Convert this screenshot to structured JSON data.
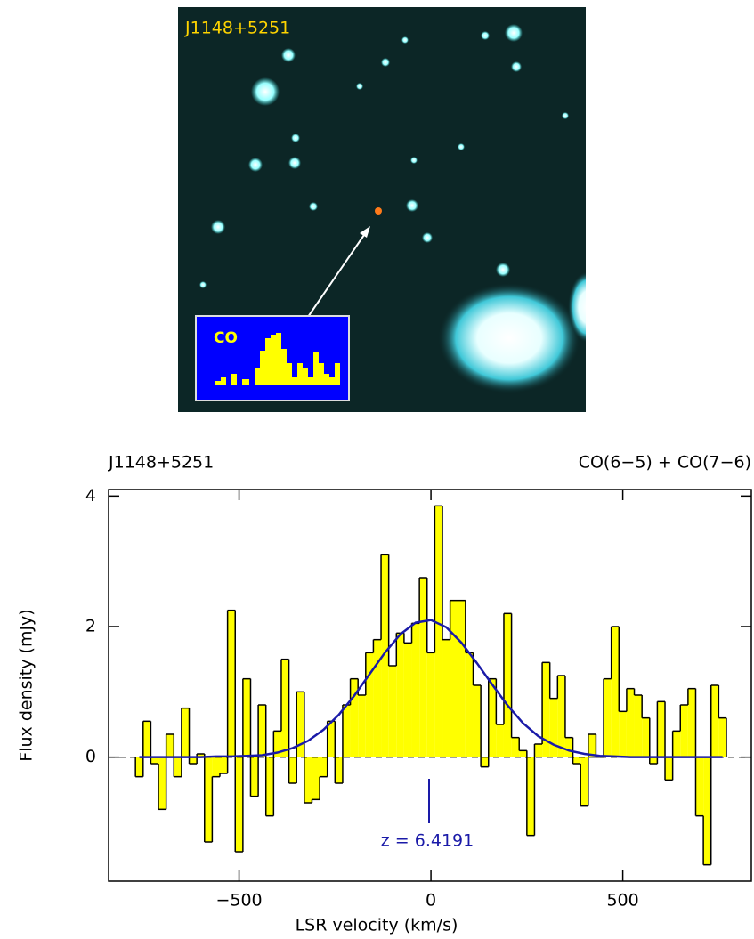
{
  "image": {
    "label": "J1148+5251",
    "inset_label": "CO"
  },
  "chart_data": {
    "type": "step",
    "title_left": "J1148+5251",
    "title_right": "CO(6−5) + CO(7−6)",
    "x_label": "LSR velocity (km/s)",
    "y_label": "Flux density (mJy)",
    "annotation": "z = 6.4191",
    "xlim": [
      -840,
      835
    ],
    "ylim": [
      -1.9,
      4.1
    ],
    "xticks": [
      {
        "value": -500,
        "label": "−500"
      },
      0,
      500
    ],
    "yticks": [
      0,
      2,
      4
    ],
    "series": [
      {
        "name": "spectrum",
        "color": "#ffff00",
        "x": [
          -760,
          -740,
          -720,
          -700,
          -680,
          -660,
          -640,
          -620,
          -600,
          -580,
          -560,
          -540,
          -520,
          -500,
          -480,
          -460,
          -440,
          -420,
          -400,
          -380,
          -360,
          -340,
          -320,
          -300,
          -280,
          -260,
          -240,
          -220,
          -200,
          -180,
          -160,
          -140,
          -120,
          -100,
          -80,
          -60,
          -40,
          -20,
          0,
          20,
          40,
          60,
          80,
          100,
          120,
          140,
          160,
          180,
          200,
          220,
          240,
          260,
          280,
          300,
          320,
          340,
          360,
          380,
          400,
          420,
          440,
          460,
          480,
          500,
          520,
          540,
          560,
          580,
          600,
          620,
          640,
          660,
          680,
          700,
          720,
          740,
          760
        ],
        "values": [
          -0.3,
          0.55,
          -0.1,
          -0.8,
          0.35,
          -0.3,
          0.75,
          -0.1,
          0.05,
          -1.3,
          -0.3,
          -0.25,
          2.25,
          -1.45,
          1.2,
          -0.6,
          0.8,
          -0.9,
          0.4,
          1.5,
          -0.4,
          1.0,
          -0.7,
          -0.65,
          -0.3,
          0.55,
          -0.4,
          0.8,
          1.2,
          0.95,
          1.6,
          1.8,
          3.1,
          1.4,
          1.9,
          1.75,
          2.05,
          2.75,
          1.6,
          3.85,
          1.8,
          2.4,
          2.4,
          1.6,
          1.1,
          -0.15,
          1.2,
          0.5,
          2.2,
          0.3,
          0.1,
          -1.2,
          0.2,
          1.45,
          0.9,
          1.25,
          0.3,
          -0.1,
          -0.75,
          0.35,
          0.0,
          1.2,
          2.0,
          0.7,
          1.05,
          0.95,
          0.6,
          -0.1,
          0.85,
          -0.35,
          0.4,
          0.8,
          1.05,
          -0.9,
          -1.65,
          1.1,
          0.6
        ]
      },
      {
        "name": "fit",
        "color": "#1a1aa8",
        "x": [
          -760,
          -720,
          -680,
          -640,
          -600,
          -560,
          -520,
          -480,
          -440,
          -400,
          -360,
          -320,
          -280,
          -240,
          -200,
          -160,
          -120,
          -80,
          -40,
          0,
          40,
          80,
          120,
          160,
          200,
          240,
          280,
          320,
          360,
          400,
          440,
          480,
          520,
          560,
          600,
          640,
          680,
          720,
          760
        ],
        "values": [
          0,
          0,
          0,
          0,
          0,
          0.01,
          0.01,
          0.02,
          0.03,
          0.07,
          0.14,
          0.25,
          0.42,
          0.65,
          0.94,
          1.27,
          1.6,
          1.88,
          2.06,
          2.1,
          1.99,
          1.75,
          1.44,
          1.11,
          0.79,
          0.52,
          0.32,
          0.19,
          0.1,
          0.05,
          0.02,
          0.01,
          0,
          0,
          0,
          0,
          0,
          0,
          0
        ]
      }
    ]
  }
}
